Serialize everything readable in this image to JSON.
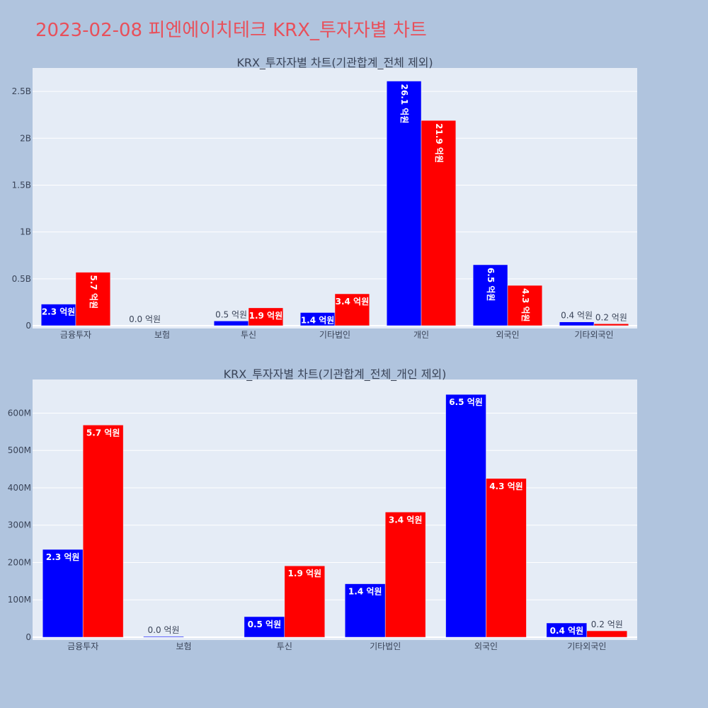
{
  "page": {
    "title": "2023-02-08 피엔에이치테크 KRX_투자자별 차트"
  },
  "chart_data": [
    {
      "type": "bar",
      "title": "KRX_투자자별 차트(기관합계_전체 제외)",
      "categories": [
        "금융투자",
        "보험",
        "투신",
        "기타법인",
        "개인",
        "외국인",
        "기타외국인"
      ],
      "series": [
        {
          "color": "#0000ff",
          "values": [
            230000000,
            0,
            50000000,
            140000000,
            2610000000,
            650000000,
            40000000
          ],
          "labels": [
            "2.3 억원",
            "0.0 억원",
            "0.5 억원",
            "1.4 억원",
            "26.1 억원",
            "6.5 억원",
            "0.4 억원"
          ]
        },
        {
          "color": "#ff0000",
          "values": [
            570000000,
            0,
            190000000,
            340000000,
            2190000000,
            430000000,
            20000000
          ],
          "labels": [
            "5.7 억원",
            "",
            "1.9 억원",
            "3.4 억원",
            "21.9 억원",
            "4.3 억원",
            "0.2 억원"
          ]
        }
      ],
      "ylim": [
        0,
        2750000000
      ],
      "yticks": [
        {
          "v": 0,
          "t": "0"
        },
        {
          "v": 500000000,
          "t": "0.5B"
        },
        {
          "v": 1000000000,
          "t": "1B"
        },
        {
          "v": 1500000000,
          "t": "1.5B"
        },
        {
          "v": 2000000000,
          "t": "2B"
        },
        {
          "v": 2500000000,
          "t": "2.5B"
        }
      ],
      "grid": true,
      "legend": "none"
    },
    {
      "type": "bar",
      "title": "KRX_투자자별 차트(기관합계_전체_개인 제외)",
      "categories": [
        "금융투자",
        "보험",
        "투신",
        "기타법인",
        "외국인",
        "기타외국인"
      ],
      "series": [
        {
          "color": "#0000ff",
          "values": [
            235000000,
            2000000,
            55000000,
            143000000,
            650000000,
            38000000
          ],
          "labels": [
            "2.3 억원",
            "0.0 억원",
            "0.5 억원",
            "1.4 억원",
            "6.5 억원",
            "0.4 억원"
          ]
        },
        {
          "color": "#ff0000",
          "values": [
            568000000,
            0,
            191000000,
            335000000,
            425000000,
            17000000
          ],
          "labels": [
            "5.7 억원",
            "",
            "1.9 억원",
            "3.4 억원",
            "4.3 억원",
            "0.2 억원"
          ]
        }
      ],
      "ylim": [
        0,
        690000000
      ],
      "yticks": [
        {
          "v": 0,
          "t": "0"
        },
        {
          "v": 100000000,
          "t": "100M"
        },
        {
          "v": 200000000,
          "t": "200M"
        },
        {
          "v": 300000000,
          "t": "300M"
        },
        {
          "v": 400000000,
          "t": "400M"
        },
        {
          "v": 500000000,
          "t": "500M"
        },
        {
          "v": 600000000,
          "t": "600M"
        }
      ],
      "grid": true,
      "legend": "none"
    }
  ]
}
